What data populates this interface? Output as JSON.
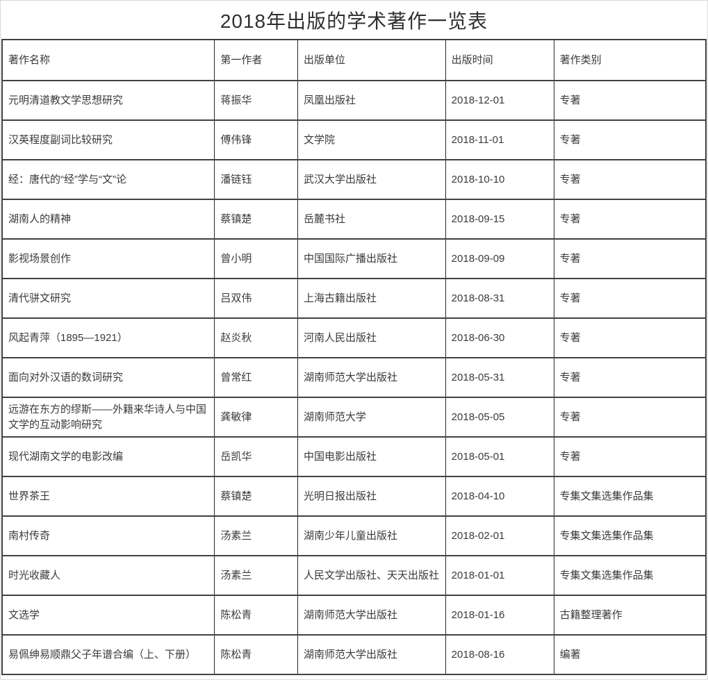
{
  "page": {
    "title": "2018年出版的学术著作一览表"
  },
  "colors": {
    "border_dark": "#414141",
    "border_thin": "#262626",
    "outer_border_light": "#d9d9d9",
    "text": "#3a3a3a",
    "background": "#ffffff"
  },
  "table": {
    "headers": [
      "著作名称",
      "第一作者",
      "出版单位",
      "出版时间",
      "著作类别"
    ],
    "rows": [
      [
        "元明清道教文学思想研究",
        "蒋振华",
        "凤凰出版社",
        "2018-12-01",
        "专著"
      ],
      [
        "汉英程度副词比较研究",
        "傅伟锋",
        "文学院",
        "2018-11-01",
        "专著"
      ],
      [
        "经：唐代的“经”学与“文”论",
        "潘链钰",
        "武汉大学出版社",
        "2018-10-10",
        "专著"
      ],
      [
        "湖南人的精神",
        "蔡镇楚",
        "岳麓书社",
        "2018-09-15",
        "专著"
      ],
      [
        "影视场景创作",
        "曾小明",
        "中国国际广播出版社",
        "2018-09-09",
        "专著"
      ],
      [
        "清代骈文研究",
        "吕双伟",
        "上海古籍出版社",
        "2018-08-31",
        "专著"
      ],
      [
        "风起青萍（1895—1921）",
        "赵炎秋",
        "河南人民出版社",
        "2018-06-30",
        "专著"
      ],
      [
        "面向对外汉语的数词研究",
        "曾常红",
        "湖南师范大学出版社",
        "2018-05-31",
        "专著"
      ],
      [
        "远游在东方的缪斯——外籍来华诗人与中国文学的互动影响研究",
        "龚敏律",
        "湖南师范大学",
        "2018-05-05",
        "专著"
      ],
      [
        "现代湖南文学的电影改编",
        "岳凯华",
        "中国电影出版社",
        "2018-05-01",
        "专著"
      ],
      [
        "世界茶王",
        "蔡镇楚",
        "光明日报出版社",
        "2018-04-10",
        "专集文集选集作品集"
      ],
      [
        "南村传奇",
        "汤素兰",
        "湖南少年儿童出版社",
        "2018-02-01",
        "专集文集选集作品集"
      ],
      [
        "时光收藏人",
        "汤素兰",
        "人民文学出版社、天天出版社",
        "2018-01-01",
        "专集文集选集作品集"
      ],
      [
        "文选学",
        "陈松青",
        "湖南师范大学出版社",
        "2018-01-16",
        "古籍整理著作"
      ],
      [
        "易佩绅易顺鼎父子年谱合编（上、下册）",
        "陈松青",
        "湖南师范大学出版社",
        "2018-08-16",
        "编著"
      ]
    ]
  }
}
